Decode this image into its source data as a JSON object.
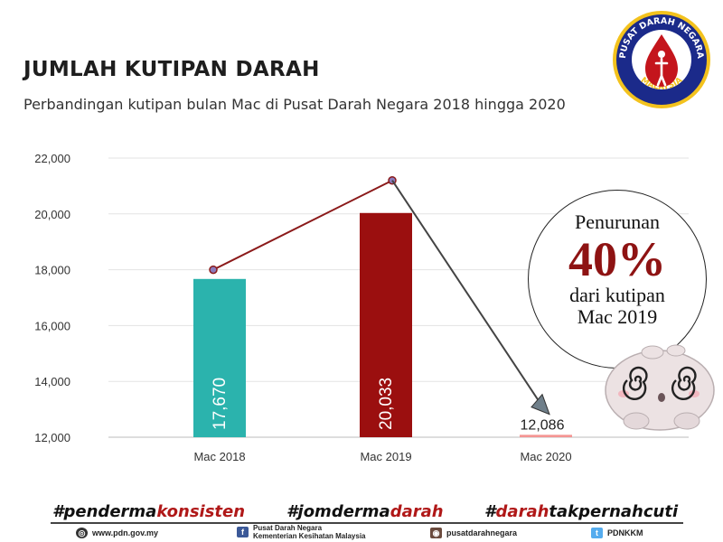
{
  "header": {
    "title": "JUMLAH KUTIPAN DARAH",
    "subtitle": "Perbandingan kutipan bulan Mac di Pusat Darah Negara 2018 hingga 2020"
  },
  "logo": {
    "ring_text_top": "PUSAT DARAH NEGARA",
    "ring_text_bottom": "MALAYSIA"
  },
  "chart_data": {
    "type": "bar",
    "categories": [
      "Mac 2018",
      "Mac 2019",
      "Mac 2020"
    ],
    "values": [
      17670,
      20033,
      12086
    ],
    "value_labels": [
      "17,670",
      "20,033",
      "12,086"
    ],
    "bar_colors": [
      "#2bb3ad",
      "#9b0f0f",
      "#f49593"
    ],
    "ylim": [
      12000,
      22000
    ],
    "yticks": [
      "12,000",
      "14,000",
      "16,000",
      "18,000",
      "20,000",
      "22,000"
    ],
    "ytick_values": [
      12000,
      14000,
      16000,
      18000,
      20000,
      22000
    ],
    "grid": true,
    "trend_line_color": "#8b1a1a",
    "arrow_color": "#444444"
  },
  "callout": {
    "line1": "Penurunan",
    "big": "40%",
    "line3": "dari kutipan",
    "line4": "Mac 2019"
  },
  "hashtags": [
    {
      "black1": "#penderma",
      "red": "konsisten",
      "black2": ""
    },
    {
      "black1": "#jomderma",
      "red": "darah",
      "black2": ""
    },
    {
      "black1": "#",
      "red": "darah",
      "black2": "takpernahcuti"
    }
  ],
  "footer": {
    "website": "www.pdn.gov.my",
    "facebook_line1": "Pusat Darah Negara",
    "facebook_line2": "Kementerian Kesihatan Malaysia",
    "instagram": "pusatdarahnegara",
    "twitter": "PDNKKM"
  }
}
